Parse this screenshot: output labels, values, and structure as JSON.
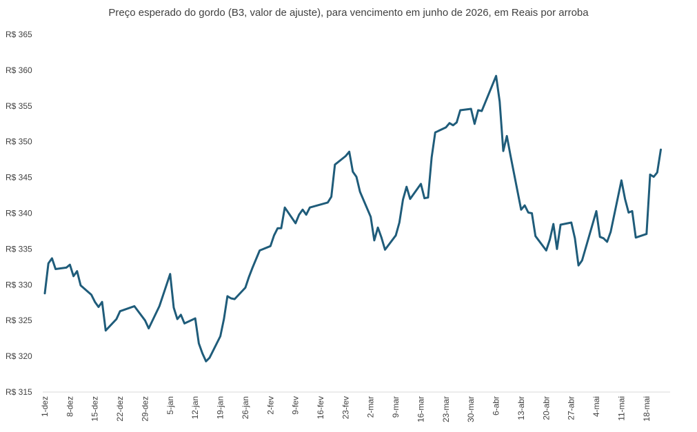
{
  "chart_data": {
    "type": "line",
    "title": "Preço esperado do gordo (B3, valor de ajuste), para vencimento em junho de 2026, em Reais por arroba",
    "xlabel": "",
    "ylabel": "",
    "ylim": [
      315,
      365
    ],
    "y_ticks": [
      {
        "value": 365,
        "label": "R$ 365"
      },
      {
        "value": 360,
        "label": "R$ 360"
      },
      {
        "value": 355,
        "label": "R$ 355"
      },
      {
        "value": 350,
        "label": "R$ 350"
      },
      {
        "value": 345,
        "label": "R$ 345"
      },
      {
        "value": 340,
        "label": "R$ 340"
      },
      {
        "value": 335,
        "label": "R$ 335"
      },
      {
        "value": 330,
        "label": "R$ 330"
      },
      {
        "value": 325,
        "label": "R$ 325"
      },
      {
        "value": 320,
        "label": "R$ 320"
      },
      {
        "value": 315,
        "label": "R$ 315"
      }
    ],
    "x_ticks": [
      "1-dez",
      "8-dez",
      "15-dez",
      "22-dez",
      "29-dez",
      "5-jan",
      "12-jan",
      "19-jan",
      "26-jan",
      "2-fev",
      "9-fev",
      "16-fev",
      "23-fev",
      "2-mar",
      "9-mar",
      "16-mar",
      "23-mar",
      "30-mar",
      "6-abr",
      "13-abr",
      "20-abr",
      "27-abr",
      "4-mai",
      "11-mai",
      "18-mai"
    ],
    "grid": false,
    "line_color": "#1f5c7a",
    "series": [
      {
        "values": [
          [
            "1-dez",
            328.8
          ],
          [
            "2-dez",
            333.0
          ],
          [
            "3-dez",
            333.7
          ],
          [
            "4-dez",
            332.2
          ],
          [
            "7-dez",
            332.4
          ],
          [
            "8-dez",
            332.8
          ],
          [
            "9-dez",
            331.2
          ],
          [
            "10-dez",
            331.9
          ],
          [
            "11-dez",
            329.9
          ],
          [
            "14-dez",
            328.6
          ],
          [
            "15-dez",
            327.6
          ],
          [
            "16-dez",
            326.9
          ],
          [
            "17-dez",
            327.6
          ],
          [
            "18-dez",
            323.6
          ],
          [
            "21-dez",
            325.2
          ],
          [
            "22-dez",
            326.3
          ],
          [
            "26-dez",
            327.0
          ],
          [
            "29-dez",
            325.0
          ],
          [
            "30-dez",
            323.9
          ],
          [
            "2-jan",
            327.0
          ],
          [
            "5-jan",
            331.5
          ],
          [
            "6-jan",
            326.8
          ],
          [
            "7-jan",
            325.2
          ],
          [
            "8-jan",
            325.8
          ],
          [
            "9-jan",
            324.6
          ],
          [
            "12-jan",
            325.3
          ],
          [
            "13-jan",
            321.8
          ],
          [
            "14-jan",
            320.4
          ],
          [
            "15-jan",
            319.3
          ],
          [
            "16-jan",
            319.8
          ],
          [
            "19-jan",
            322.8
          ],
          [
            "20-jan",
            325.2
          ],
          [
            "21-jan",
            328.4
          ],
          [
            "22-jan",
            328.1
          ],
          [
            "23-jan",
            328.0
          ],
          [
            "26-jan",
            329.6
          ],
          [
            "27-jan",
            331.1
          ],
          [
            "28-jan",
            332.4
          ],
          [
            "30-jan",
            334.8
          ],
          [
            "2-fev",
            335.4
          ],
          [
            "3-fev",
            336.9
          ],
          [
            "4-fev",
            337.9
          ],
          [
            "5-fev",
            337.9
          ],
          [
            "6-fev",
            340.8
          ],
          [
            "9-fev",
            338.6
          ],
          [
            "10-fev",
            339.8
          ],
          [
            "11-fev",
            340.5
          ],
          [
            "12-fev",
            339.8
          ],
          [
            "13-fev",
            340.8
          ],
          [
            "18-fev",
            341.5
          ],
          [
            "19-fev",
            342.3
          ],
          [
            "20-fev",
            346.8
          ],
          [
            "23-fev",
            348.0
          ],
          [
            "24-fev",
            348.6
          ],
          [
            "25-fev",
            345.8
          ],
          [
            "26-fev",
            345.1
          ],
          [
            "27-fev",
            343.0
          ],
          [
            "2-mar",
            339.5
          ],
          [
            "3-mar",
            336.2
          ],
          [
            "4-mar",
            338.0
          ],
          [
            "5-mar",
            336.6
          ],
          [
            "6-mar",
            334.9
          ],
          [
            "9-mar",
            336.9
          ],
          [
            "10-mar",
            338.7
          ],
          [
            "11-mar",
            341.9
          ],
          [
            "12-mar",
            343.7
          ],
          [
            "13-mar",
            342.0
          ],
          [
            "16-mar",
            344.1
          ],
          [
            "17-mar",
            342.1
          ],
          [
            "18-mar",
            342.2
          ],
          [
            "19-mar",
            347.8
          ],
          [
            "20-mar",
            351.3
          ],
          [
            "23-mar",
            352.0
          ],
          [
            "24-mar",
            352.6
          ],
          [
            "25-mar",
            352.3
          ],
          [
            "26-mar",
            352.7
          ],
          [
            "27-mar",
            354.4
          ],
          [
            "30-mar",
            354.6
          ],
          [
            "31-mar",
            352.5
          ],
          [
            "1-abr",
            354.4
          ],
          [
            "2-abr",
            354.3
          ],
          [
            "6-abr",
            359.2
          ],
          [
            "7-abr",
            355.6
          ],
          [
            "8-abr",
            348.7
          ],
          [
            "9-abr",
            350.8
          ],
          [
            "10-abr",
            348.1
          ],
          [
            "13-abr",
            340.5
          ],
          [
            "14-abr",
            341.1
          ],
          [
            "15-abr",
            340.1
          ],
          [
            "16-abr",
            340.0
          ],
          [
            "17-abr",
            336.8
          ],
          [
            "20-abr",
            334.8
          ],
          [
            "21-abr",
            336.3
          ],
          [
            "22-abr",
            338.5
          ],
          [
            "23-abr",
            335.0
          ],
          [
            "24-abr",
            338.4
          ],
          [
            "27-abr",
            338.7
          ],
          [
            "28-abr",
            336.5
          ],
          [
            "29-abr",
            332.7
          ],
          [
            "30-abr",
            333.4
          ],
          [
            "4-mai",
            340.3
          ],
          [
            "5-mai",
            336.7
          ],
          [
            "6-mai",
            336.5
          ],
          [
            "7-mai",
            336.0
          ],
          [
            "8-mai",
            337.4
          ],
          [
            "11-mai",
            344.6
          ],
          [
            "12-mai",
            342.0
          ],
          [
            "13-mai",
            340.1
          ],
          [
            "14-mai",
            340.3
          ],
          [
            "15-mai",
            336.6
          ],
          [
            "18-mai",
            337.1
          ],
          [
            "19-mai",
            345.4
          ],
          [
            "20-mai",
            345.1
          ],
          [
            "21-mai",
            345.7
          ],
          [
            "22-mai",
            348.9
          ]
        ]
      }
    ]
  }
}
